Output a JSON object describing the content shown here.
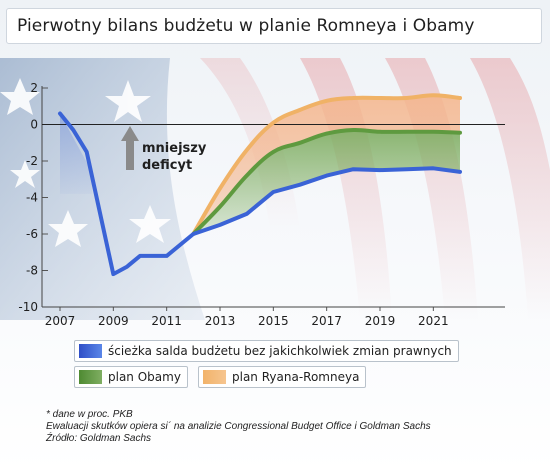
{
  "title": "Pierwotny bilans budżetu w planie Romneya i Obamy",
  "annotation": {
    "line1": "mniejszy",
    "line2": "deficyt"
  },
  "colors": {
    "baseline": "#3a63d6",
    "obama": "#5e9a3f",
    "ryan_romney": "#f0b266",
    "obama_fill": "#7fae62",
    "ryan_fill": "#f4b48a",
    "arrow": "#8a8a8a"
  },
  "legend": {
    "baseline_label": "ścieżka salda budżetu bez jakichkolwiek zmian prawnych",
    "obama_label": "plan Obamy",
    "ryan_romney_label": "plan Ryana-Romneya"
  },
  "footnotes": {
    "line1": "* dane w proc. PKB",
    "line2": "Ewaluacji skutków opiera si´ na analizie Congressional Budget Office i Goldman Sachs",
    "line3": "Źródło: Goldman Sachs"
  },
  "chart_data": {
    "type": "line",
    "title": "Pierwotny bilans budżetu w planie Romneya i Obamy",
    "xlim": [
      2007,
      2022
    ],
    "ylim": [
      -10,
      2
    ],
    "x_ticks": [
      2007,
      2009,
      2011,
      2013,
      2015,
      2017,
      2019,
      2021
    ],
    "y_ticks": [
      2,
      0,
      -2,
      -4,
      -6,
      -8,
      -10
    ],
    "x_tick_labels": [
      "2007",
      "2009",
      "2011",
      "2013",
      "2015",
      "2017",
      "2019",
      "2021"
    ],
    "y_tick_labels": [
      "2",
      "0",
      "-2",
      "-4",
      "-6",
      "-8",
      "-10"
    ],
    "grid": false,
    "series": [
      {
        "key": "baseline",
        "name": "ścieżka salda budżetu bez jakichkolwiek zmian prawnych",
        "x": [
          2007,
          2007.5,
          2008,
          2009,
          2009.5,
          2010,
          2011,
          2012,
          2013,
          2014,
          2015,
          2016,
          2017,
          2018,
          2019,
          2020,
          2021,
          2022
        ],
        "values": [
          0.6,
          -0.3,
          -1.5,
          -8.2,
          -7.8,
          -7.2,
          -7.2,
          -6.0,
          -5.5,
          -4.9,
          -3.7,
          -3.3,
          -2.8,
          -2.45,
          -2.5,
          -2.45,
          -2.4,
          -2.6
        ]
      },
      {
        "key": "obama",
        "name": "plan Obamy",
        "x": [
          2012,
          2013,
          2014,
          2015,
          2016,
          2017,
          2018,
          2019,
          2020,
          2021,
          2022
        ],
        "values": [
          -6.0,
          -4.5,
          -2.8,
          -1.5,
          -1.0,
          -0.5,
          -0.3,
          -0.4,
          -0.4,
          -0.4,
          -0.45
        ]
      },
      {
        "key": "ryan_romney",
        "name": "plan Ryana-Romneya",
        "x": [
          2012,
          2013,
          2014,
          2015,
          2016,
          2017,
          2018,
          2019,
          2020,
          2021,
          2022
        ],
        "values": [
          -6.0,
          -3.5,
          -1.4,
          0.1,
          0.8,
          1.3,
          1.45,
          1.45,
          1.45,
          1.6,
          1.45
        ]
      }
    ]
  }
}
